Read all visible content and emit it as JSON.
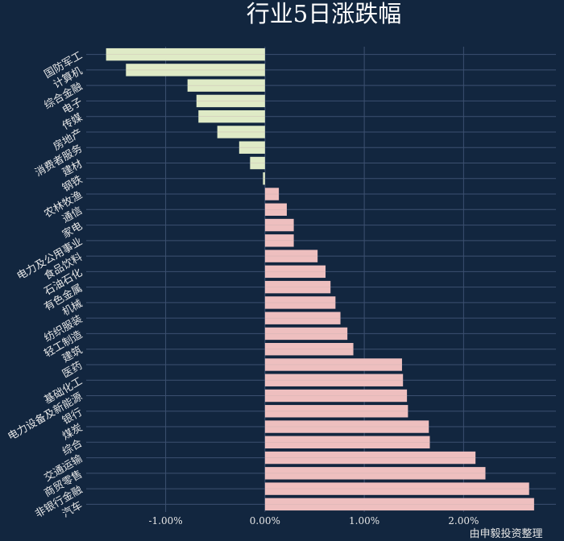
{
  "chart_data": {
    "type": "bar",
    "orientation": "horizontal",
    "title": "行业5日涨跌幅",
    "source_note": "由申毅投资整理",
    "categories": [
      "国防军工",
      "计算机",
      "综合金融",
      "电子",
      "传媒",
      "房地产",
      "消费者服务",
      "建材",
      "钢铁",
      "农林牧渔",
      "通信",
      "家电",
      "电力及公用事业",
      "食品饮料",
      "石油石化",
      "有色金属",
      "机械",
      "纺织服装",
      "轻工制造",
      "建筑",
      "医药",
      "基础化工",
      "电力设备及新能源",
      "银行",
      "煤炭",
      "综合",
      "交通运输",
      "商贸零售",
      "非银行金融",
      "汽车"
    ],
    "values": [
      -1.6,
      -1.4,
      -0.78,
      -0.69,
      -0.67,
      -0.48,
      -0.26,
      -0.15,
      -0.02,
      0.14,
      0.22,
      0.29,
      0.29,
      0.53,
      0.61,
      0.66,
      0.71,
      0.76,
      0.83,
      0.89,
      1.38,
      1.39,
      1.43,
      1.44,
      1.65,
      1.66,
      2.12,
      2.22,
      2.66,
      2.71
    ],
    "xlim": [
      -1.8,
      2.93
    ],
    "x_ticks": [
      -1.0,
      0.0,
      1.0,
      2.0
    ],
    "x_tick_labels": [
      "-1.00%",
      "0.00%",
      "1.00%",
      "2.00%"
    ],
    "xlabel": "",
    "ylabel": "",
    "grid": true,
    "legend": "none",
    "colors": {
      "background": "#12263f",
      "negative": "#dfeac6",
      "positive": "#eebfbf",
      "grid": "#3c5070",
      "text": "#e6e6e6",
      "title": "#ffffff"
    }
  }
}
